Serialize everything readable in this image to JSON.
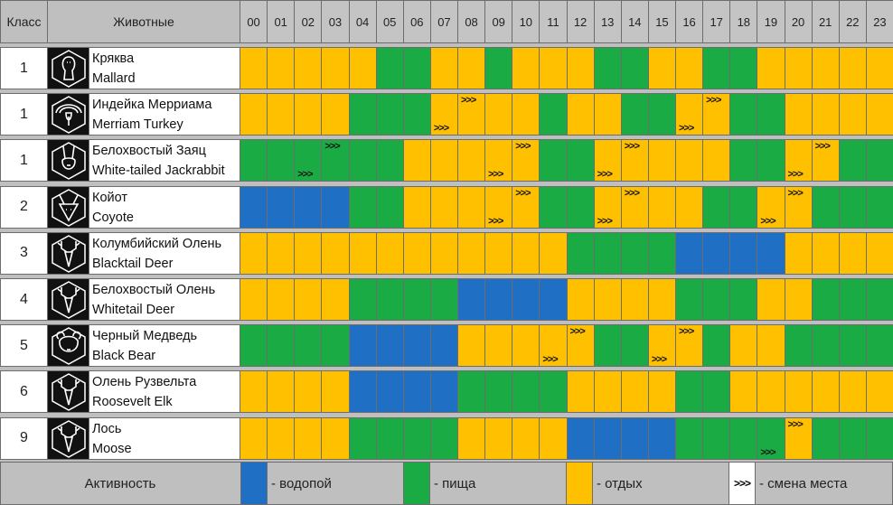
{
  "header": {
    "class_label": "Класс",
    "animals_label": "Животные",
    "hours": [
      "00",
      "01",
      "02",
      "03",
      "04",
      "05",
      "06",
      "07",
      "08",
      "09",
      "10",
      "11",
      "12",
      "13",
      "14",
      "15",
      "16",
      "17",
      "18",
      "19",
      "20",
      "21",
      "22",
      "23"
    ]
  },
  "colors": {
    "water": "#1f6fc5",
    "food": "#1aab44",
    "rest": "#ffc000",
    "header": "#bfbfbf",
    "border": "#6d6d6d"
  },
  "rows": [
    {
      "class": "1",
      "name_ru": "Кряква",
      "name_en": "Mallard",
      "icon": "mallard-icon",
      "slots": [
        "R",
        "R",
        "R",
        "R",
        "R",
        "F",
        "F",
        "R",
        "R",
        "F",
        "R",
        "R",
        "R",
        "F",
        "F",
        "R",
        "R",
        "F",
        "F",
        "R",
        "R",
        "R",
        "R",
        "R"
      ],
      "moves_top": [],
      "moves_bottom": []
    },
    {
      "class": "1",
      "name_ru": "Индейка Мерриама",
      "name_en": "Merriam Turkey",
      "icon": "turkey-icon",
      "slots": [
        "R",
        "R",
        "R",
        "R",
        "F",
        "F",
        "F",
        "R",
        "R",
        "R",
        "R",
        "F",
        "R",
        "R",
        "F",
        "F",
        "R",
        "R",
        "F",
        "F",
        "R",
        "R",
        "R",
        "R"
      ],
      "moves_top": [
        8,
        17
      ],
      "moves_bottom": [
        7,
        16
      ]
    },
    {
      "class": "1",
      "name_ru": "Белохвостый Заяц",
      "name_en": "White-tailed Jackrabbit",
      "icon": "jackrabbit-icon",
      "slots": [
        "F",
        "F",
        "F",
        "F",
        "F",
        "F",
        "R",
        "R",
        "R",
        "R",
        "R",
        "F",
        "F",
        "R",
        "R",
        "R",
        "R",
        "R",
        "F",
        "F",
        "R",
        "R",
        "F",
        "F"
      ],
      "moves_top": [
        3,
        10,
        14,
        21
      ],
      "moves_bottom": [
        2,
        9,
        13,
        20
      ]
    },
    {
      "class": "2",
      "name_ru": "Койот",
      "name_en": "Coyote",
      "icon": "coyote-icon",
      "slots": [
        "W",
        "W",
        "W",
        "W",
        "F",
        "F",
        "R",
        "R",
        "R",
        "R",
        "R",
        "F",
        "F",
        "R",
        "R",
        "R",
        "R",
        "F",
        "F",
        "R",
        "R",
        "F",
        "F",
        "F"
      ],
      "moves_top": [
        10,
        14,
        20
      ],
      "moves_bottom": [
        9,
        13,
        19
      ]
    },
    {
      "class": "3",
      "name_ru": "Колумбийский Олень",
      "name_en": "Blacktail Deer",
      "icon": "blacktail-deer-icon",
      "slots": [
        "R",
        "R",
        "R",
        "R",
        "R",
        "R",
        "R",
        "R",
        "R",
        "R",
        "R",
        "R",
        "F",
        "F",
        "F",
        "F",
        "W",
        "W",
        "W",
        "W",
        "R",
        "R",
        "R",
        "R"
      ],
      "moves_top": [],
      "moves_bottom": []
    },
    {
      "class": "4",
      "name_ru": "Белохвостый Олень",
      "name_en": "Whitetail Deer",
      "icon": "whitetail-deer-icon",
      "slots": [
        "R",
        "R",
        "R",
        "R",
        "F",
        "F",
        "F",
        "F",
        "W",
        "W",
        "W",
        "W",
        "R",
        "R",
        "R",
        "R",
        "F",
        "F",
        "F",
        "R",
        "R",
        "F",
        "F",
        "F"
      ],
      "moves_top": [],
      "moves_bottom": []
    },
    {
      "class": "5",
      "name_ru": "Черный Медведь",
      "name_en": "Black Bear",
      "icon": "black-bear-icon",
      "slots": [
        "F",
        "F",
        "F",
        "F",
        "W",
        "W",
        "W",
        "W",
        "R",
        "R",
        "R",
        "R",
        "R",
        "F",
        "F",
        "R",
        "R",
        "F",
        "R",
        "R",
        "F",
        "F",
        "F",
        "F"
      ],
      "moves_top": [
        12,
        16
      ],
      "moves_bottom": [
        11,
        15
      ]
    },
    {
      "class": "6",
      "name_ru": "Олень Рузвельта",
      "name_en": "Roosevelt Elk",
      "icon": "roosevelt-elk-icon",
      "slots": [
        "R",
        "R",
        "R",
        "R",
        "W",
        "W",
        "W",
        "W",
        "F",
        "F",
        "F",
        "F",
        "R",
        "R",
        "R",
        "R",
        "F",
        "F",
        "R",
        "R",
        "R",
        "R",
        "R",
        "R"
      ],
      "moves_top": [],
      "moves_bottom": []
    },
    {
      "class": "9",
      "name_ru": "Лось",
      "name_en": "Moose",
      "icon": "moose-icon",
      "slots": [
        "R",
        "R",
        "R",
        "R",
        "F",
        "F",
        "F",
        "F",
        "R",
        "R",
        "R",
        "R",
        "W",
        "W",
        "W",
        "W",
        "F",
        "F",
        "F",
        "F",
        "R",
        "F",
        "F",
        "F"
      ],
      "moves_top": [
        20
      ],
      "moves_bottom": [
        19
      ]
    }
  ],
  "move_marker": ">>>",
  "legend": {
    "title": "Активность",
    "water": "- водопой",
    "food": "- пища",
    "rest": "- отдых",
    "move_symbol": ">>>",
    "move": "- смена места"
  }
}
